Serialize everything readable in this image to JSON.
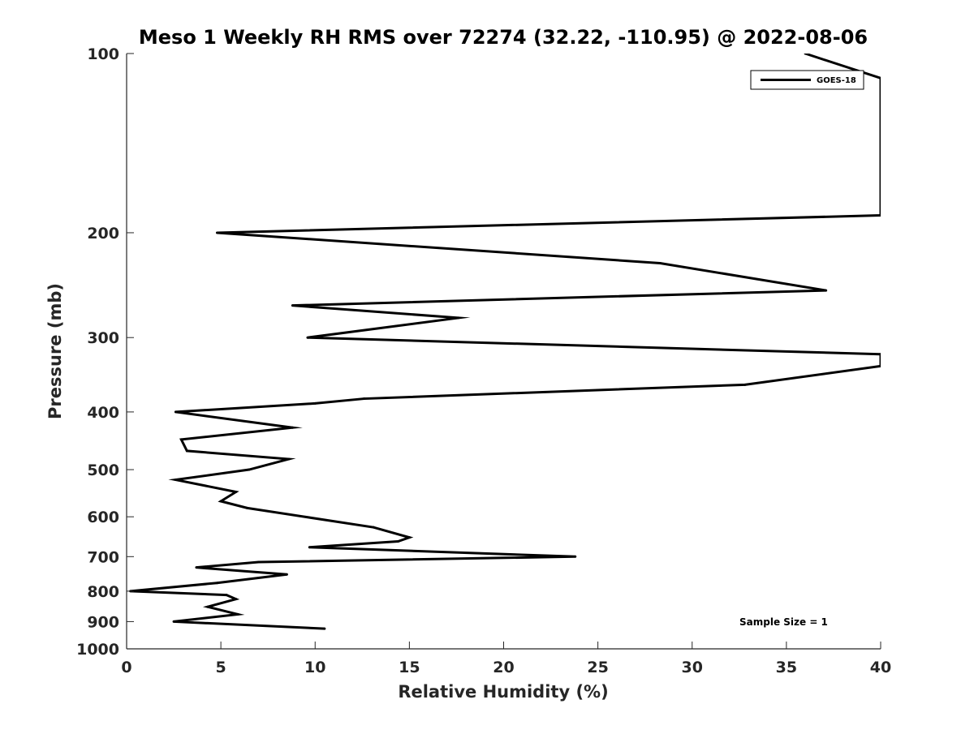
{
  "chart_data": {
    "type": "line",
    "title": "Meso 1 Weekly RH RMS over 72274 (32.22, -110.95) @ 2022-08-06",
    "xlabel": "Relative Humidity (%)",
    "ylabel": "Pressure (mb)",
    "xlim": [
      0,
      40
    ],
    "ylim": [
      100,
      1000
    ],
    "y_scale": "log",
    "y_reversed": true,
    "x_ticks": [
      0,
      5,
      10,
      15,
      20,
      25,
      30,
      35,
      40
    ],
    "y_ticks": [
      100,
      200,
      300,
      400,
      500,
      600,
      700,
      800,
      900,
      1000
    ],
    "grid": false,
    "legend_position": "top-right",
    "annotation": "Sample Size = 1",
    "series": [
      {
        "name": "GOES-18",
        "color": "#000000",
        "points": [
          {
            "x": 10.5,
            "y": 925
          },
          {
            "x": 2.5,
            "y": 900
          },
          {
            "x": 5.9,
            "y": 875
          },
          {
            "x": 4.3,
            "y": 850
          },
          {
            "x": 5.8,
            "y": 825
          },
          {
            "x": 5.3,
            "y": 812
          },
          {
            "x": 0.2,
            "y": 800
          },
          {
            "x": 4.8,
            "y": 775
          },
          {
            "x": 8.5,
            "y": 750
          },
          {
            "x": 3.7,
            "y": 730
          },
          {
            "x": 7.0,
            "y": 715
          },
          {
            "x": 23.8,
            "y": 700
          },
          {
            "x": 9.7,
            "y": 675
          },
          {
            "x": 14.4,
            "y": 660
          },
          {
            "x": 15.0,
            "y": 650
          },
          {
            "x": 13.1,
            "y": 625
          },
          {
            "x": 6.4,
            "y": 580
          },
          {
            "x": 5.0,
            "y": 565
          },
          {
            "x": 5.8,
            "y": 545
          },
          {
            "x": 2.6,
            "y": 520
          },
          {
            "x": 6.5,
            "y": 500
          },
          {
            "x": 8.6,
            "y": 480
          },
          {
            "x": 3.2,
            "y": 465
          },
          {
            "x": 2.9,
            "y": 445
          },
          {
            "x": 8.8,
            "y": 425
          },
          {
            "x": 2.6,
            "y": 400
          },
          {
            "x": 10.0,
            "y": 387
          },
          {
            "x": 12.6,
            "y": 380
          },
          {
            "x": 32.8,
            "y": 360
          },
          {
            "x": 40.0,
            "y": 335
          },
          {
            "x": 40.0,
            "y": 320
          },
          {
            "x": 9.6,
            "y": 300
          },
          {
            "x": 17.6,
            "y": 278
          },
          {
            "x": 8.8,
            "y": 265
          },
          {
            "x": 37.1,
            "y": 250
          },
          {
            "x": 28.3,
            "y": 225
          },
          {
            "x": 4.8,
            "y": 200
          },
          {
            "x": 40.0,
            "y": 187
          },
          {
            "x": 40.0,
            "y": 110
          },
          {
            "x": 36.0,
            "y": 100
          }
        ]
      }
    ]
  }
}
